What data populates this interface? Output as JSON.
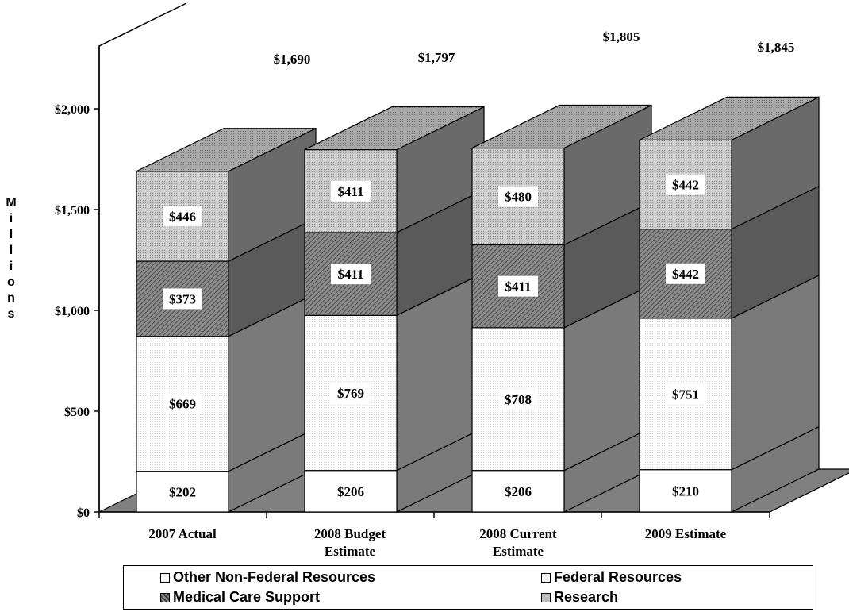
{
  "chart_data": {
    "type": "bar",
    "stacked": true,
    "three_d": true,
    "ylabel": "Millions",
    "ylim": [
      0,
      2000
    ],
    "yticks": [
      "$0",
      "$500",
      "$1,000",
      "$1,500",
      "$2,000"
    ],
    "ytick_values": [
      0,
      500,
      1000,
      1500,
      2000
    ],
    "categories": [
      [
        "2007 Actual"
      ],
      [
        "2008 Budget",
        "Estimate"
      ],
      [
        "2008 Current",
        "Estimate"
      ],
      [
        "2009 Estimate"
      ]
    ],
    "totals": [
      "$1,690",
      "$1,797",
      "$1,805",
      "$1,845"
    ],
    "series": [
      {
        "name": "Other Non-Federal Resources",
        "values": [
          202,
          206,
          206,
          210
        ],
        "labels": [
          "$202",
          "$206",
          "$206",
          "$210"
        ],
        "color": "#ffffff"
      },
      {
        "name": "Federal Resources",
        "values": [
          669,
          769,
          708,
          751
        ],
        "labels": [
          "$669",
          "$769",
          "$708",
          "$751"
        ],
        "color": "#f4f4f4"
      },
      {
        "name": "Medical Care Support",
        "values": [
          373,
          411,
          411,
          442
        ],
        "labels": [
          "$373",
          "$411",
          "$411",
          "$442"
        ],
        "color": "#6e6e6e"
      },
      {
        "name": "Research",
        "values": [
          446,
          411,
          480,
          442
        ],
        "labels": [
          "$446",
          "$411",
          "$480",
          "$442"
        ],
        "color": "#bdbdbd"
      }
    ],
    "legend_position": "bottom"
  }
}
